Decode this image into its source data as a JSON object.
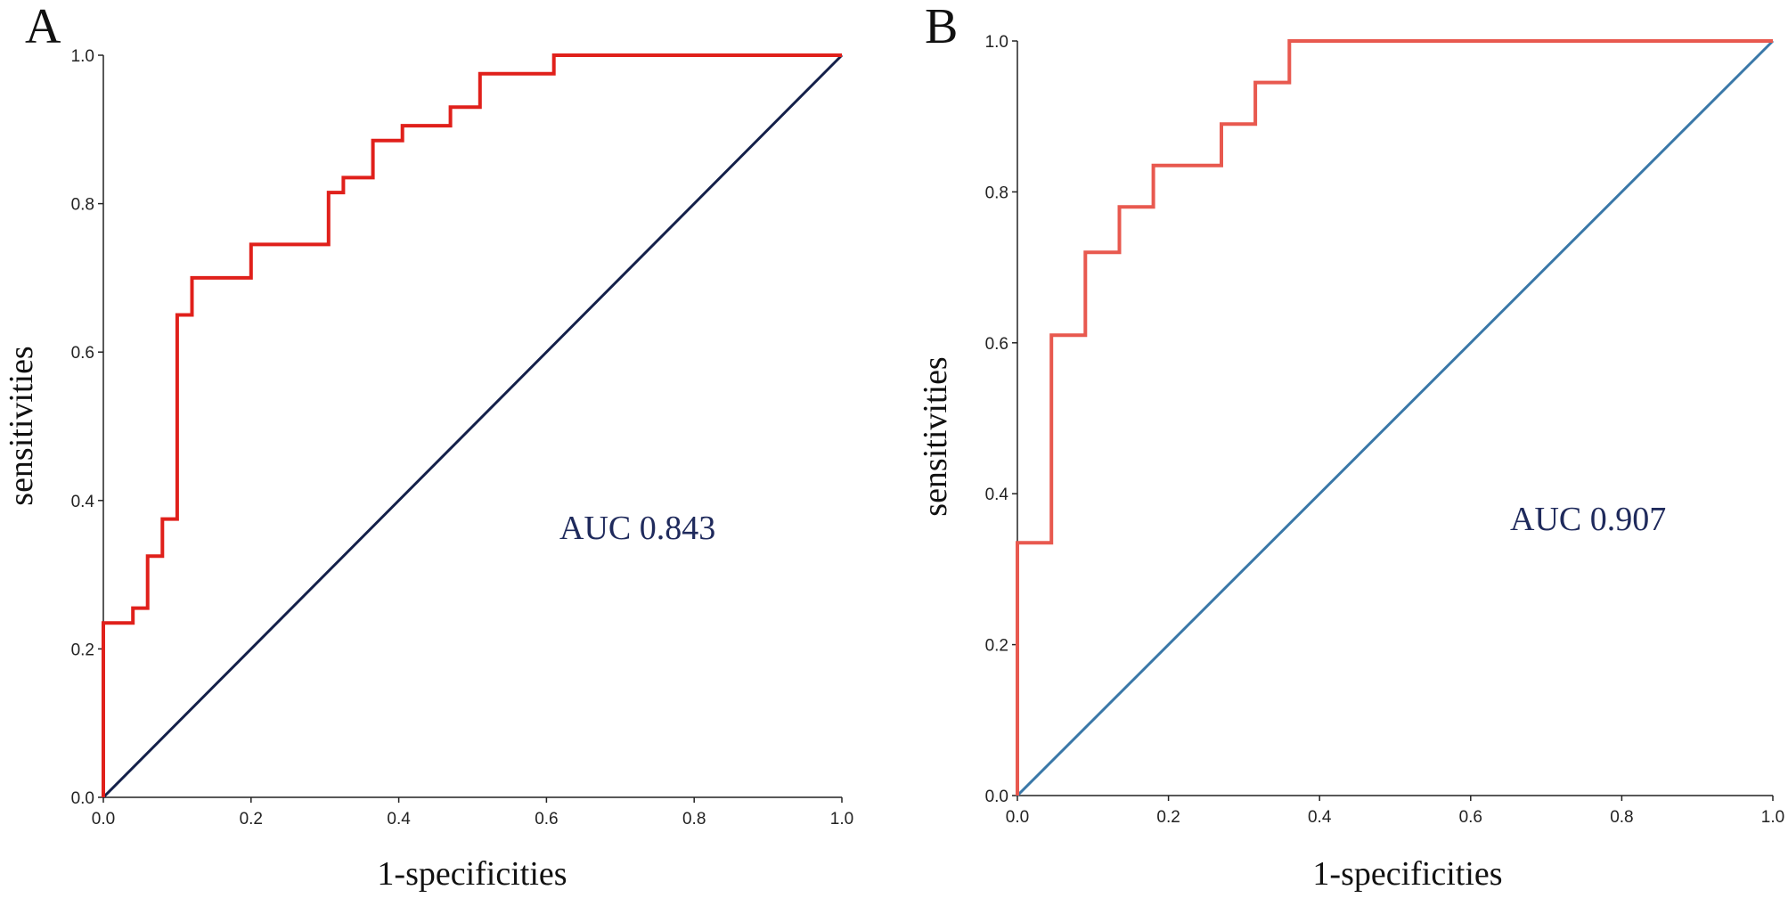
{
  "chart_data": [
    {
      "type": "line",
      "panel": "A",
      "xlabel": "1-specificities",
      "ylabel": "sensitivities",
      "xlim": [
        0,
        1
      ],
      "ylim": [
        0,
        1
      ],
      "xticks": [
        "0.0",
        "0.2",
        "0.4",
        "0.6",
        "0.8",
        "1.0"
      ],
      "yticks": [
        "0.0",
        "0.2",
        "0.4",
        "0.6",
        "0.8",
        "1.0"
      ],
      "annotation": "AUC 0.843",
      "series": [
        {
          "name": "ROC",
          "color": "#e0201b",
          "x": [
            0.0,
            0.0,
            0.04,
            0.04,
            0.06,
            0.06,
            0.08,
            0.08,
            0.1,
            0.1,
            0.12,
            0.12,
            0.2,
            0.2,
            0.305,
            0.305,
            0.325,
            0.325,
            0.365,
            0.365,
            0.405,
            0.405,
            0.47,
            0.47,
            0.51,
            0.51,
            0.61,
            0.61,
            1.0
          ],
          "y": [
            0.0,
            0.235,
            0.235,
            0.255,
            0.255,
            0.325,
            0.325,
            0.375,
            0.375,
            0.65,
            0.65,
            0.7,
            0.7,
            0.745,
            0.745,
            0.815,
            0.815,
            0.835,
            0.835,
            0.885,
            0.885,
            0.905,
            0.905,
            0.93,
            0.93,
            0.975,
            0.975,
            1.0,
            1.0
          ]
        },
        {
          "name": "reference",
          "color": "#14204a",
          "x": [
            0,
            1
          ],
          "y": [
            0,
            1
          ]
        }
      ]
    },
    {
      "type": "line",
      "panel": "B",
      "xlabel": "1-specificities",
      "ylabel": "sensitivities",
      "xlim": [
        0,
        1
      ],
      "ylim": [
        0,
        1
      ],
      "xticks": [
        "0.0",
        "0.2",
        "0.4",
        "0.6",
        "0.8",
        "1.0"
      ],
      "yticks": [
        "0.0",
        "0.2",
        "0.4",
        "0.6",
        "0.8",
        "1.0"
      ],
      "annotation": "AUC 0.907",
      "series": [
        {
          "name": "ROC",
          "color": "#e8594f",
          "x": [
            0.0,
            0.0,
            0.045,
            0.045,
            0.09,
            0.09,
            0.135,
            0.135,
            0.18,
            0.18,
            0.27,
            0.27,
            0.315,
            0.315,
            0.36,
            0.36,
            1.0
          ],
          "y": [
            0.0,
            0.335,
            0.335,
            0.61,
            0.61,
            0.72,
            0.72,
            0.78,
            0.78,
            0.835,
            0.835,
            0.89,
            0.89,
            0.945,
            0.945,
            1.0,
            1.0
          ]
        },
        {
          "name": "reference",
          "color": "#3a78a8",
          "x": [
            0,
            1
          ],
          "y": [
            0,
            1
          ]
        }
      ]
    }
  ]
}
